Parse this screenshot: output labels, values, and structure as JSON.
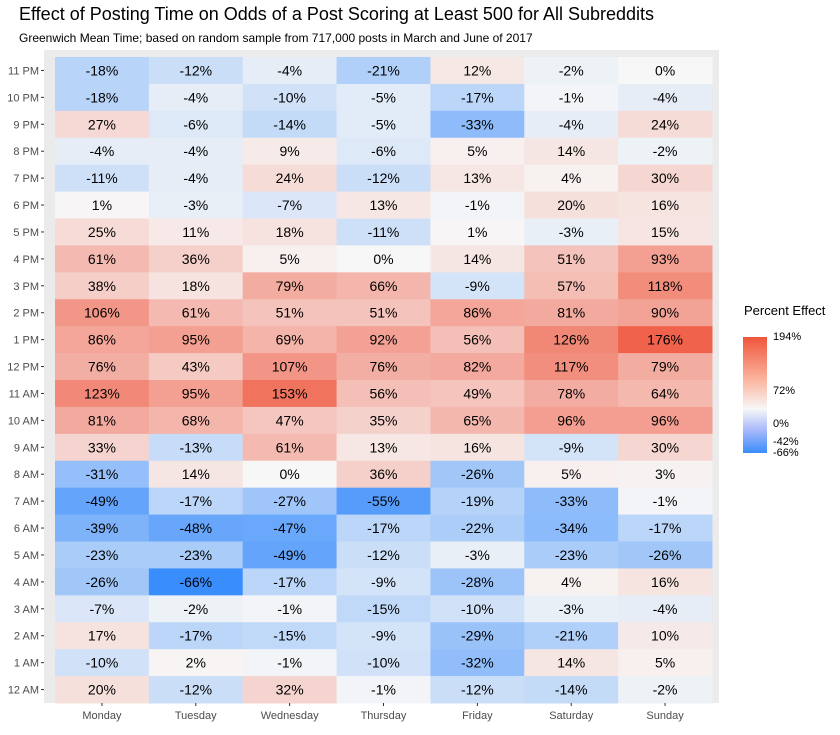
{
  "chart_data": {
    "type": "heatmap",
    "title": "Effect of Posting Time on Odds of a Post Scoring at Least 500 for All Subreddits",
    "subtitle": "Greenwich Mean Time; based on random sample from 717,000 posts in March and June of 2017",
    "x_categories": [
      "Monday",
      "Tuesday",
      "Wednesday",
      "Thursday",
      "Friday",
      "Saturday",
      "Sunday"
    ],
    "y_categories": [
      "11 PM",
      "10 PM",
      "9 PM",
      "8 PM",
      "7 PM",
      "6 PM",
      "5 PM",
      "4 PM",
      "3 PM",
      "2 PM",
      "1 PM",
      "12 PM",
      "11 AM",
      "10 AM",
      "9 AM",
      "8 AM",
      "7 AM",
      "6 AM",
      "5 AM",
      "4 AM",
      "3 AM",
      "2 AM",
      "1 AM",
      "12 AM"
    ],
    "values": [
      [
        -18,
        -12,
        -4,
        -21,
        12,
        -2,
        0
      ],
      [
        -18,
        -4,
        -10,
        -5,
        -17,
        -1,
        -4
      ],
      [
        27,
        -6,
        -14,
        -5,
        -33,
        -4,
        24
      ],
      [
        -4,
        -4,
        9,
        -6,
        5,
        14,
        -2
      ],
      [
        -11,
        -4,
        24,
        -12,
        13,
        4,
        30
      ],
      [
        1,
        -3,
        -7,
        13,
        -1,
        20,
        16
      ],
      [
        25,
        11,
        18,
        -11,
        1,
        -3,
        15
      ],
      [
        61,
        36,
        5,
        0,
        14,
        51,
        93
      ],
      [
        38,
        18,
        79,
        66,
        -9,
        57,
        118
      ],
      [
        106,
        61,
        51,
        51,
        86,
        81,
        90
      ],
      [
        86,
        95,
        69,
        92,
        56,
        126,
        176
      ],
      [
        76,
        43,
        107,
        76,
        82,
        117,
        79
      ],
      [
        123,
        95,
        153,
        56,
        49,
        78,
        64
      ],
      [
        81,
        68,
        47,
        35,
        65,
        96,
        96
      ],
      [
        33,
        -13,
        61,
        13,
        16,
        -9,
        30
      ],
      [
        -31,
        14,
        0,
        36,
        -26,
        5,
        3
      ],
      [
        -49,
        -17,
        -27,
        -55,
        -19,
        -33,
        -1
      ],
      [
        -39,
        -48,
        -47,
        -17,
        -22,
        -34,
        -17
      ],
      [
        -23,
        -23,
        -49,
        -12,
        -3,
        -23,
        -26
      ],
      [
        -26,
        -66,
        -17,
        -9,
        -28,
        4,
        16
      ],
      [
        -7,
        -2,
        -1,
        -15,
        -10,
        -3,
        -4
      ],
      [
        17,
        -17,
        -15,
        -9,
        -29,
        -21,
        10
      ],
      [
        -10,
        2,
        -1,
        -10,
        -32,
        14,
        5
      ],
      [
        20,
        -12,
        32,
        -1,
        -12,
        -14,
        -2
      ]
    ],
    "value_suffix": "%",
    "legend": {
      "title": "Percent Effect",
      "tick_labels": [
        "194%",
        "72%",
        "0%",
        "-42%",
        "-66%"
      ],
      "ticks": [
        194,
        72,
        0,
        -42,
        -66
      ],
      "range": [
        -66,
        194
      ],
      "position": "right"
    },
    "colors": {
      "high": "#ef553c",
      "mid": "#f7f7f7",
      "low": "#3a8dfc",
      "panel_background": "#ebebeb",
      "text": "#000000",
      "axis_text": "#4d4d4d"
    }
  }
}
